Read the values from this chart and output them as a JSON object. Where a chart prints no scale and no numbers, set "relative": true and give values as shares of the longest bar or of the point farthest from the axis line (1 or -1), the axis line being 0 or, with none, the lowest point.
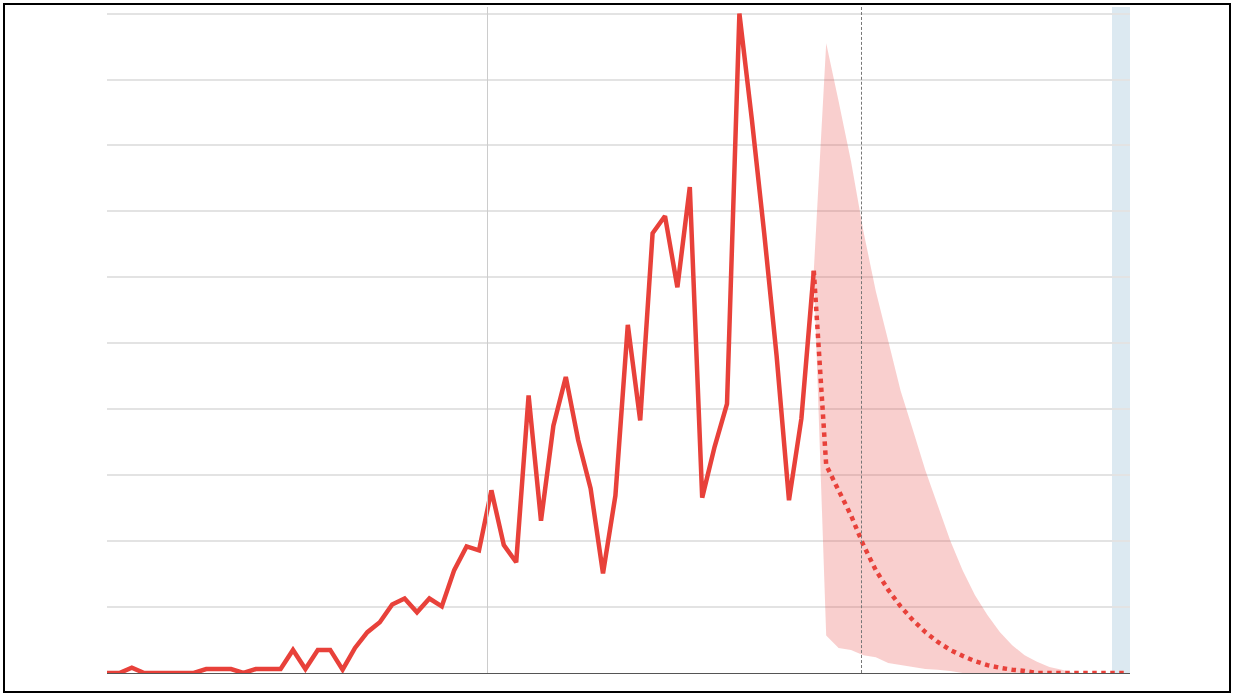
{
  "chart_data": {
    "type": "line",
    "relative": true,
    "grid": "y",
    "categories": [
      null,
      null,
      null,
      null,
      null,
      null,
      null,
      null,
      null,
      null,
      null,
      null,
      null,
      null,
      null,
      null,
      null,
      null,
      null,
      null,
      null,
      null,
      null,
      null,
      null,
      null,
      null,
      null,
      null,
      null,
      null,
      null,
      null,
      null,
      null,
      null,
      null,
      null,
      null,
      null,
      null,
      null,
      null,
      null,
      null,
      null,
      null,
      null,
      null,
      null,
      null,
      null,
      null,
      null,
      null,
      null,
      null,
      null,
      null,
      null,
      null,
      null,
      null,
      null,
      null,
      null,
      null,
      null,
      null,
      null,
      null,
      null,
      null,
      null,
      null,
      null,
      null,
      null,
      null,
      null,
      null,
      null,
      null
    ],
    "series": [
      {
        "color": "#e8413a",
        "line_style": "solid",
        "values": [
          0,
          0,
          0.008,
          0,
          0,
          0,
          0,
          0,
          0.006,
          0.006,
          0.006,
          0,
          0.006,
          0.006,
          0.006,
          0.035,
          0.006,
          0.035,
          0.035,
          0.005,
          0.038,
          0.062,
          0.077,
          0.104,
          0.113,
          0.092,
          0.113,
          0.101,
          0.156,
          0.192,
          0.186,
          0.277,
          0.194,
          0.168,
          0.421,
          0.231,
          0.375,
          0.449,
          0.353,
          0.28,
          0.151,
          0.269,
          0.528,
          0.383,
          0.667,
          0.693,
          0.585,
          0.737,
          0.266,
          0.343,
          0.408,
          1.0,
          0.84,
          0.667,
          0.481,
          0.262,
          0.386,
          0.61,
          null,
          null,
          null,
          null,
          null,
          null,
          null,
          null,
          null,
          null,
          null,
          null,
          null,
          null,
          null,
          null,
          null,
          null,
          null,
          null,
          null,
          null,
          null,
          null,
          null
        ]
      },
      {
        "color": "#e8413a",
        "line_style": "dotted",
        "values": [
          null,
          null,
          null,
          null,
          null,
          null,
          null,
          null,
          null,
          null,
          null,
          null,
          null,
          null,
          null,
          null,
          null,
          null,
          null,
          null,
          null,
          null,
          null,
          null,
          null,
          null,
          null,
          null,
          null,
          null,
          null,
          null,
          null,
          null,
          null,
          null,
          null,
          null,
          null,
          null,
          null,
          null,
          null,
          null,
          null,
          null,
          null,
          null,
          null,
          null,
          null,
          null,
          null,
          null,
          null,
          null,
          null,
          0.61,
          0.315,
          0.277,
          0.239,
          0.194,
          0.156,
          0.126,
          0.101,
          0.08,
          0.062,
          0.047,
          0.035,
          0.026,
          0.018,
          0.012,
          0.008,
          0.005,
          0.003,
          0,
          0,
          0,
          0,
          0,
          0,
          0,
          0
        ],
        "lower": [
          null,
          null,
          null,
          null,
          null,
          null,
          null,
          null,
          null,
          null,
          null,
          null,
          null,
          null,
          null,
          null,
          null,
          null,
          null,
          null,
          null,
          null,
          null,
          null,
          null,
          null,
          null,
          null,
          null,
          null,
          null,
          null,
          null,
          null,
          null,
          null,
          null,
          null,
          null,
          null,
          null,
          null,
          null,
          null,
          null,
          null,
          null,
          null,
          null,
          null,
          null,
          null,
          null,
          null,
          null,
          null,
          null,
          0.61,
          0.057,
          0.038,
          0.035,
          0.027,
          0.024,
          0.015,
          0.012,
          0.009,
          0.006,
          0.005,
          0.003,
          0,
          0,
          0,
          0,
          0,
          0,
          0,
          0,
          0,
          0,
          0,
          0,
          0,
          0
        ],
        "upper": [
          null,
          null,
          null,
          null,
          null,
          null,
          null,
          null,
          null,
          null,
          null,
          null,
          null,
          null,
          null,
          null,
          null,
          null,
          null,
          null,
          null,
          null,
          null,
          null,
          null,
          null,
          null,
          null,
          null,
          null,
          null,
          null,
          null,
          null,
          null,
          null,
          null,
          null,
          null,
          null,
          null,
          null,
          null,
          null,
          null,
          null,
          null,
          null,
          null,
          null,
          null,
          null,
          null,
          null,
          null,
          null,
          null,
          0.61,
          0.955,
          0.867,
          0.776,
          0.67,
          0.579,
          0.504,
          0.428,
          0.368,
          0.307,
          0.254,
          0.201,
          0.156,
          0.118,
          0.088,
          0.062,
          0.042,
          0.027,
          0.017,
          0.009,
          0.005,
          0,
          0,
          0,
          0,
          0
        ]
      }
    ]
  }
}
